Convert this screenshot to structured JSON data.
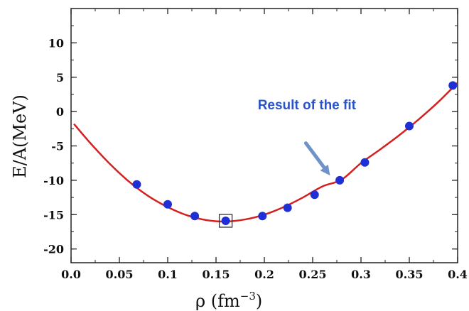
{
  "chart_data": {
    "type": "scatter",
    "xlabel_base": "ρ (fm",
    "xlabel_exp": "−3",
    "xlabel_close": ")",
    "ylabel": "E/A(MeV)",
    "xlim": [
      0.0,
      0.4
    ],
    "ylim": [
      -22,
      15
    ],
    "x_ticks": [
      0.0,
      0.05,
      0.1,
      0.15,
      0.2,
      0.25,
      0.3,
      0.35,
      0.4
    ],
    "x_tick_labels": [
      "0.0",
      "0.05",
      "0.1",
      "0.15",
      "0.2",
      "0.25",
      "0.3",
      "0.35",
      "0.4"
    ],
    "y_ticks": [
      10,
      5,
      0,
      -5,
      -10,
      -15,
      -20
    ],
    "y_tick_labels": [
      "10",
      "5",
      "0",
      "-5",
      "-10",
      "-15",
      "-20"
    ],
    "grid": false,
    "legend": "none",
    "series": [
      {
        "kind": "points",
        "color": "#1f2fd6",
        "x": [
          0.068,
          0.1,
          0.128,
          0.16,
          0.198,
          0.224,
          0.252,
          0.278,
          0.304,
          0.35,
          0.395
        ],
        "y": [
          -10.6,
          -13.5,
          -15.2,
          -15.9,
          -15.2,
          -14.0,
          -12.1,
          -10.0,
          -7.4,
          -2.1,
          3.8
        ]
      },
      {
        "kind": "fit-curve",
        "color": "#d42020",
        "x": [
          0.003,
          0.02,
          0.04,
          0.06,
          0.08,
          0.1,
          0.12,
          0.14,
          0.16,
          0.18,
          0.2,
          0.22,
          0.24,
          0.26,
          0.28,
          0.3,
          0.32,
          0.34,
          0.36,
          0.38,
          0.4
        ],
        "y": [
          -1.8,
          -4.6,
          -7.6,
          -10.2,
          -12.3,
          -13.9,
          -15.1,
          -15.8,
          -16.0,
          -15.7,
          -15.0,
          -13.9,
          -12.5,
          -10.9,
          -9.9,
          -7.5,
          -5.5,
          -3.4,
          -1.1,
          1.4,
          4.2
        ]
      }
    ],
    "highlight": {
      "x": 0.16,
      "y": -15.9,
      "shape": "square"
    },
    "annotations": [
      {
        "text": "Result of the fit",
        "x": 0.244,
        "y": 0.3,
        "arrow_to": {
          "x": 0.268,
          "y": -9.3
        }
      }
    ],
    "colors": {
      "point": "#1f2fd6",
      "curve": "#d42020",
      "annotation": "#2a54c8"
    }
  }
}
